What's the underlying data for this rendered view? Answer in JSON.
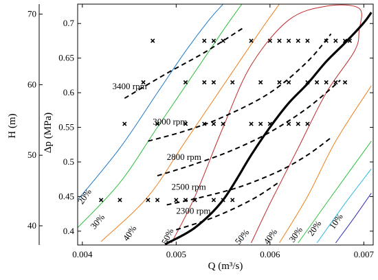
{
  "chart_data": {
    "type": "line",
    "xlabel": "Q (m³/s)",
    "ylabel_left_outer": "H (m)",
    "ylabel_left_inner": "Δp (MPa)",
    "xlim": [
      0.00395,
      0.0071
    ],
    "ylim": [
      0.38,
      0.728
    ],
    "x_ticks": [
      0.004,
      0.005,
      0.006,
      0.007
    ],
    "x_tick_labels": [
      "0.004",
      "0.005",
      "0.006",
      "0.007"
    ],
    "y_ticks": [
      0.4,
      0.45,
      0.5,
      0.55,
      0.6,
      0.65,
      0.7
    ],
    "y_tick_labels": [
      "0.4",
      "0.45",
      "0.5",
      "0.55",
      "0.6",
      "0.65",
      "0.7"
    ],
    "h_ticks": [
      40,
      50,
      60,
      70
    ],
    "h_tick_labels": [
      "40",
      "50",
      "60",
      "70"
    ],
    "h_per_mpa": 98.1,
    "grid": false,
    "speed_curves": [
      {
        "label": "3400 rpm",
        "points": [
          [
            0.00445,
            0.592
          ],
          [
            0.0049,
            0.628
          ],
          [
            0.0053,
            0.658
          ],
          [
            0.00573,
            0.695
          ]
        ]
      },
      {
        "label": "3000 rpm",
        "points": [
          [
            0.0047,
            0.53
          ],
          [
            0.0051,
            0.545
          ],
          [
            0.0055,
            0.565
          ],
          [
            0.006,
            0.6
          ],
          [
            0.0064,
            0.645
          ],
          [
            0.00665,
            0.685
          ]
        ]
      },
      {
        "label": "2800 rpm",
        "points": [
          [
            0.0048,
            0.48
          ],
          [
            0.0052,
            0.497
          ],
          [
            0.0056,
            0.517
          ],
          [
            0.006,
            0.543
          ],
          [
            0.0064,
            0.578
          ],
          [
            0.00675,
            0.618
          ]
        ]
      },
      {
        "label": "2500 rpm",
        "points": [
          [
            0.0049,
            0.438
          ],
          [
            0.0053,
            0.45
          ],
          [
            0.0057,
            0.465
          ],
          [
            0.0061,
            0.487
          ],
          [
            0.0064,
            0.51
          ],
          [
            0.00665,
            0.535
          ]
        ]
      },
      {
        "label": "2300 rpm",
        "points": [
          [
            0.005,
            0.402
          ],
          [
            0.0054,
            0.42
          ],
          [
            0.0058,
            0.445
          ],
          [
            0.0061,
            0.471
          ]
        ]
      }
    ],
    "best_efficiency_line": [
      [
        0.00488,
        0.381
      ],
      [
        0.0052,
        0.405
      ],
      [
        0.0055,
        0.445
      ],
      [
        0.0058,
        0.51
      ],
      [
        0.006,
        0.55
      ],
      [
        0.0062,
        0.585
      ],
      [
        0.0064,
        0.613
      ],
      [
        0.0066,
        0.645
      ],
      [
        0.0068,
        0.672
      ],
      [
        0.007,
        0.701
      ],
      [
        0.00708,
        0.716
      ]
    ],
    "measured_points": [
      [
        0.00475,
        0.675
      ],
      [
        0.0053,
        0.675
      ],
      [
        0.0054,
        0.675
      ],
      [
        0.0055,
        0.675
      ],
      [
        0.0058,
        0.675
      ],
      [
        0.006,
        0.675
      ],
      [
        0.0061,
        0.675
      ],
      [
        0.0062,
        0.675
      ],
      [
        0.0063,
        0.675
      ],
      [
        0.0064,
        0.675
      ],
      [
        0.0066,
        0.675
      ],
      [
        0.0067,
        0.675
      ],
      [
        0.0068,
        0.675
      ],
      [
        0.00685,
        0.675
      ],
      [
        0.00465,
        0.615
      ],
      [
        0.0051,
        0.615
      ],
      [
        0.0053,
        0.615
      ],
      [
        0.0054,
        0.615
      ],
      [
        0.0056,
        0.615
      ],
      [
        0.0059,
        0.615
      ],
      [
        0.0061,
        0.615
      ],
      [
        0.0062,
        0.615
      ],
      [
        0.0064,
        0.615
      ],
      [
        0.0065,
        0.615
      ],
      [
        0.0066,
        0.615
      ],
      [
        0.0067,
        0.615
      ],
      [
        0.0068,
        0.615
      ],
      [
        0.00445,
        0.555
      ],
      [
        0.0048,
        0.555
      ],
      [
        0.0051,
        0.555
      ],
      [
        0.0053,
        0.555
      ],
      [
        0.0054,
        0.555
      ],
      [
        0.0055,
        0.555
      ],
      [
        0.0058,
        0.555
      ],
      [
        0.0059,
        0.555
      ],
      [
        0.006,
        0.555
      ],
      [
        0.0062,
        0.555
      ],
      [
        0.0063,
        0.555
      ],
      [
        0.0064,
        0.555
      ],
      [
        0.0042,
        0.445
      ],
      [
        0.0044,
        0.445
      ],
      [
        0.0047,
        0.445
      ],
      [
        0.0048,
        0.445
      ],
      [
        0.005,
        0.445
      ],
      [
        0.0051,
        0.445
      ],
      [
        0.0052,
        0.445
      ],
      [
        0.0054,
        0.445
      ],
      [
        0.0055,
        0.445
      ],
      [
        0.0056,
        0.445
      ]
    ],
    "efficiency_contours": [
      {
        "label": "20%",
        "color": "#1b78c8",
        "points": [
          [
            0.00395,
            0.445
          ],
          [
            0.0044,
            0.52
          ],
          [
            0.0048,
            0.6
          ],
          [
            0.0051,
            0.66
          ],
          [
            0.00535,
            0.705
          ],
          [
            0.0055,
            0.728
          ]
        ]
      },
      {
        "label": "30%",
        "color": "#2ac13a",
        "points": [
          [
            0.00395,
            0.405
          ],
          [
            0.0044,
            0.47
          ],
          [
            0.0048,
            0.55
          ],
          [
            0.0052,
            0.63
          ],
          [
            0.0055,
            0.69
          ],
          [
            0.0057,
            0.728
          ]
        ]
      },
      {
        "label": "40%",
        "color": "#f07f1a",
        "points": [
          [
            0.0042,
            0.385
          ],
          [
            0.0047,
            0.45
          ],
          [
            0.0051,
            0.53
          ],
          [
            0.0056,
            0.63
          ],
          [
            0.0059,
            0.69
          ],
          [
            0.0061,
            0.728
          ]
        ]
      },
      {
        "label": "50%",
        "color": "#c02a2a",
        "points": [
          [
            0.00495,
            0.383
          ],
          [
            0.0052,
            0.45
          ],
          [
            0.0055,
            0.55
          ],
          [
            0.0058,
            0.64
          ],
          [
            0.0062,
            0.705
          ],
          [
            0.0066,
            0.725
          ],
          [
            0.00695,
            0.722
          ],
          [
            0.00695,
            0.69
          ],
          [
            0.0069,
            0.66
          ],
          [
            0.0066,
            0.6
          ],
          [
            0.0063,
            0.52
          ],
          [
            0.006,
            0.44
          ],
          [
            0.0058,
            0.383
          ]
        ]
      },
      {
        "label": "40%",
        "color": "#f07f1a",
        "points": [
          [
            0.0061,
            0.383
          ],
          [
            0.0064,
            0.45
          ],
          [
            0.0067,
            0.53
          ],
          [
            0.00708,
            0.61
          ]
        ]
      },
      {
        "label": "30%",
        "color": "#2ac13a",
        "points": [
          [
            0.0063,
            0.383
          ],
          [
            0.0066,
            0.44
          ],
          [
            0.00708,
            0.53
          ]
        ]
      },
      {
        "label": "20%",
        "color": "#1fb8e0",
        "points": [
          [
            0.0065,
            0.383
          ],
          [
            0.0068,
            0.44
          ],
          [
            0.00708,
            0.49
          ]
        ]
      },
      {
        "label": "10%",
        "color": "#2d2db8",
        "points": [
          [
            0.0067,
            0.383
          ],
          [
            0.0069,
            0.42
          ],
          [
            0.00708,
            0.455
          ]
        ]
      }
    ],
    "annotations": [
      {
        "text": "3400 rpm",
        "x": 0.00432,
        "y": 0.605
      },
      {
        "text": "3000 rpm",
        "x": 0.00475,
        "y": 0.554
      },
      {
        "text": "2800 rpm",
        "x": 0.0049,
        "y": 0.503
      },
      {
        "text": "2500 rpm",
        "x": 0.00495,
        "y": 0.46
      },
      {
        "text": "2300 rpm",
        "x": 0.005,
        "y": 0.425
      }
    ],
    "contour_labels": [
      {
        "text": "20%",
        "x": 0.004,
        "y": 0.438,
        "rot": -55
      },
      {
        "text": "30%",
        "x": 0.00413,
        "y": 0.402,
        "rot": -50
      },
      {
        "text": "40%",
        "x": 0.00448,
        "y": 0.385,
        "rot": -55
      },
      {
        "text": "50%",
        "x": 0.0049,
        "y": 0.38,
        "rot": -65
      },
      {
        "text": "50%",
        "x": 0.00567,
        "y": 0.38,
        "rot": -50
      },
      {
        "text": "40%",
        "x": 0.00598,
        "y": 0.38,
        "rot": -55
      },
      {
        "text": "30%",
        "x": 0.00625,
        "y": 0.383,
        "rot": -55
      },
      {
        "text": "20%",
        "x": 0.00645,
        "y": 0.392,
        "rot": -55
      },
      {
        "text": "10%",
        "x": 0.00668,
        "y": 0.402,
        "rot": -55
      }
    ]
  }
}
